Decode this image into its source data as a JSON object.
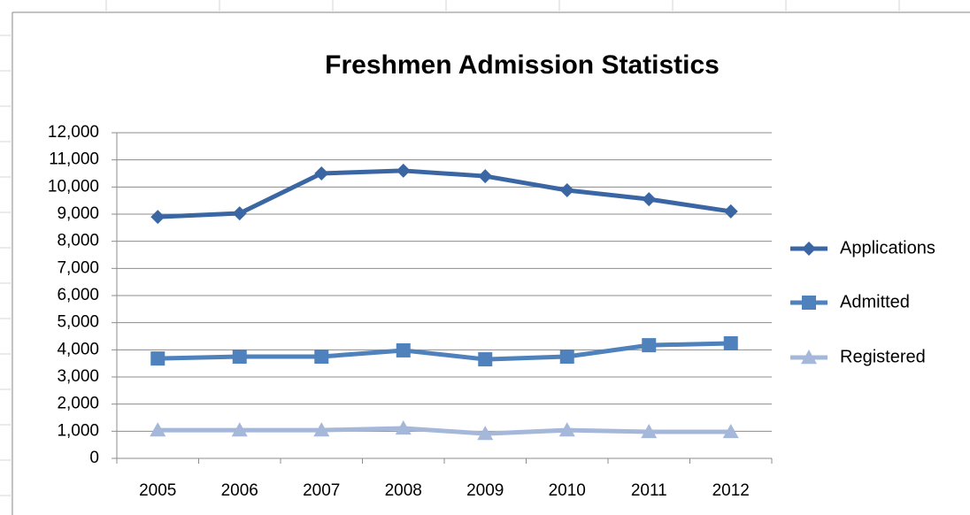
{
  "chart_data": {
    "type": "line",
    "title": "Freshmen Admission Statistics",
    "categories": [
      "2005",
      "2006",
      "2007",
      "2008",
      "2009",
      "2010",
      "2011",
      "2012"
    ],
    "series": [
      {
        "name": "Applications",
        "color": "#3a67a3",
        "marker": "diamond",
        "values": [
          8900,
          9030,
          10500,
          10600,
          10400,
          9880,
          9550,
          9100
        ]
      },
      {
        "name": "Admitted",
        "color": "#4f81bd",
        "marker": "square",
        "values": [
          3680,
          3750,
          3750,
          3980,
          3650,
          3750,
          4170,
          4240
        ]
      },
      {
        "name": "Registered",
        "color": "#a5b8da",
        "marker": "triangle",
        "values": [
          1040,
          1040,
          1040,
          1110,
          910,
          1040,
          980,
          980
        ]
      }
    ],
    "ylim": [
      0,
      12000
    ],
    "yticks": [
      0,
      {
        "value": 1000,
        "label": "1,000"
      },
      {
        "value": 2000,
        "label": "2,000"
      },
      {
        "value": 3000,
        "label": "3,000"
      },
      {
        "value": 4000,
        "label": "4,000"
      },
      {
        "value": 5000,
        "label": "5,000"
      },
      {
        "value": 6000,
        "label": "6,000"
      },
      {
        "value": 7000,
        "label": "7,000"
      },
      {
        "value": 8000,
        "label": "8,000"
      },
      {
        "value": 9000,
        "label": "9,000"
      },
      {
        "value": 10000,
        "label": "10,000"
      },
      {
        "value": 11000,
        "label": "11,000"
      },
      {
        "value": 12000,
        "label": "12,000"
      }
    ],
    "grid": true,
    "legend": "right"
  }
}
